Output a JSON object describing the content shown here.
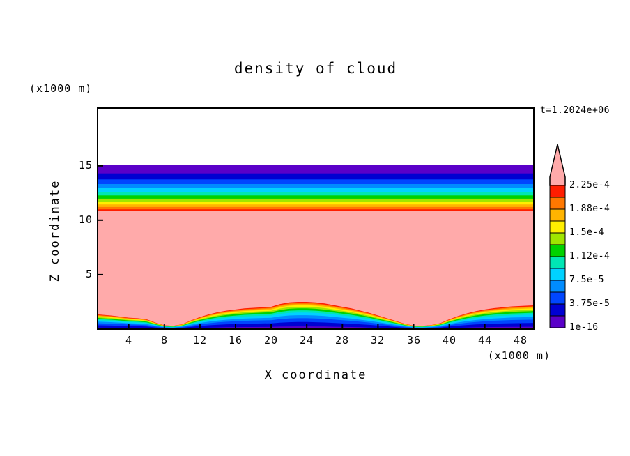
{
  "header": {
    "title": "density of cloud",
    "time_label": "t=1.2024e+06"
  },
  "axes": {
    "x": {
      "label": "X coordinate",
      "unit": "(x1000 m)",
      "ticks": [
        4,
        8,
        12,
        16,
        20,
        24,
        28,
        32,
        36,
        40,
        44,
        48
      ]
    },
    "z": {
      "label": "Z coordinate",
      "unit": "(x1000 m)",
      "ticks": [
        5,
        10,
        15
      ]
    }
  },
  "colorbar": {
    "labels": [
      "2.25e-4",
      "1.88e-4",
      "1.5e-4",
      "1.12e-4",
      "7.5e-5",
      "3.75e-5",
      "1e-16"
    ],
    "over_arrow": true
  },
  "chart_data": {
    "type": "filled-contour",
    "title": "density of cloud",
    "xlabel": "X coordinate (x1000 m)",
    "ylabel": "Z coordinate (x1000 m)",
    "time_annotation": "t=1.2024e+06",
    "x_range": [
      0.5,
      49.5
    ],
    "z_range": [
      0,
      20.3
    ],
    "contour_levels": [
      "1e-16",
      "1.875e-5",
      "3.75e-5",
      "5.625e-5",
      "7.5e-5",
      "9.375e-5",
      "1.12e-4",
      "1.31e-4",
      "1.5e-4",
      "1.69e-4",
      "1.88e-4",
      "2.06e-4",
      "2.25e-4"
    ],
    "palette": [
      "#5a00c8",
      "#0000d2",
      "#0046ff",
      "#008cff",
      "#00d2ff",
      "#00e6b4",
      "#00d200",
      "#a0e600",
      "#ffee00",
      "#ffb400",
      "#ff7800",
      "#ff1e00"
    ],
    "over_color": "#ffaaaa",
    "under_color": "#ffffff",
    "top_structure": {
      "note": "horizontal stratified bands; density decreases upward from pink interior to white (zero) above top_z",
      "base_z": 10.85,
      "top_z": 15.1,
      "fractions_red_to_purple": [
        0.045,
        0.05,
        0.055,
        0.06,
        0.065,
        0.07,
        0.075,
        0.08,
        0.09,
        0.1,
        0.13,
        0.18
      ]
    },
    "bottom_structure": {
      "note": "wavy bands near ground; density decreases downward from pink interior to dark blue/purple at surface; dips near x=8.5 and x=36.5, humps near x=23 and right edge",
      "pink_base_profile": [
        [
          0.5,
          1.35
        ],
        [
          2,
          1.25
        ],
        [
          3,
          1.15
        ],
        [
          4,
          1.05
        ],
        [
          5,
          1.0
        ],
        [
          6,
          0.9
        ],
        [
          7,
          0.6
        ],
        [
          8,
          0.35
        ],
        [
          9,
          0.3
        ],
        [
          10,
          0.45
        ],
        [
          11,
          0.8
        ],
        [
          12,
          1.1
        ],
        [
          13,
          1.35
        ],
        [
          14,
          1.55
        ],
        [
          15,
          1.7
        ],
        [
          16,
          1.8
        ],
        [
          17,
          1.9
        ],
        [
          18,
          1.95
        ],
        [
          19,
          2.0
        ],
        [
          20,
          2.05
        ],
        [
          21,
          2.3
        ],
        [
          22,
          2.45
        ],
        [
          23,
          2.5
        ],
        [
          24,
          2.5
        ],
        [
          25,
          2.45
        ],
        [
          26,
          2.35
        ],
        [
          27,
          2.2
        ],
        [
          28,
          2.05
        ],
        [
          29,
          1.9
        ],
        [
          30,
          1.7
        ],
        [
          31,
          1.5
        ],
        [
          32,
          1.25
        ],
        [
          33,
          1.0
        ],
        [
          34,
          0.75
        ],
        [
          35,
          0.5
        ],
        [
          36,
          0.32
        ],
        [
          37,
          0.3
        ],
        [
          38,
          0.38
        ],
        [
          39,
          0.55
        ],
        [
          40,
          0.9
        ],
        [
          41,
          1.2
        ],
        [
          42,
          1.45
        ],
        [
          43,
          1.65
        ],
        [
          44,
          1.8
        ],
        [
          45,
          1.92
        ],
        [
          46,
          2.0
        ],
        [
          47,
          2.08
        ],
        [
          48,
          2.12
        ],
        [
          49,
          2.16
        ],
        [
          49.5,
          2.18
        ]
      ],
      "cumulative_fraction_tops_purple_to_red": [
        0.1,
        0.26,
        0.4,
        0.51,
        0.61,
        0.69,
        0.76,
        0.82,
        0.875,
        0.92,
        0.96,
        1.0
      ]
    }
  }
}
